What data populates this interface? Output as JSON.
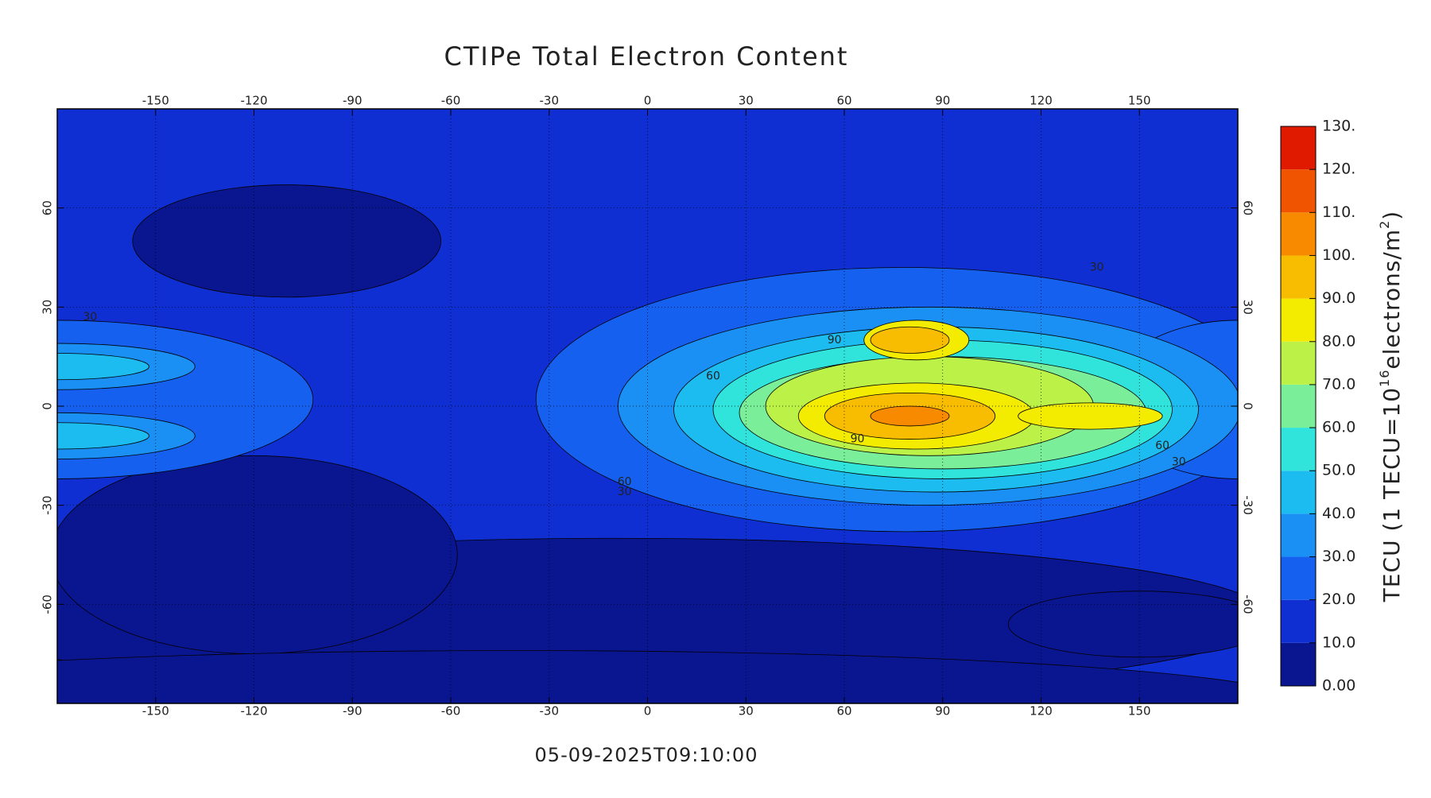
{
  "title": "CTIPe Total Electron Content",
  "timestamp": "05-09-2025T09:10:00",
  "map": {
    "xlim": [
      -180,
      180
    ],
    "ylim": [
      -90,
      90
    ],
    "xticks": [
      -150,
      -120,
      -90,
      -60,
      -30,
      0,
      30,
      60,
      90,
      120,
      150
    ],
    "yticks": [
      -60,
      -30,
      0,
      30,
      60
    ],
    "grid": true
  },
  "colorbar": {
    "label_parts": [
      "TECU (1 TECU=10",
      "16",
      "electrons/m",
      "2",
      ")"
    ],
    "range": [
      0,
      130
    ],
    "ticks": [
      {
        "value": 0,
        "label": "0.00"
      },
      {
        "value": 10,
        "label": "10.0"
      },
      {
        "value": 20,
        "label": "20.0"
      },
      {
        "value": 30,
        "label": "30.0"
      },
      {
        "value": 40,
        "label": "40.0"
      },
      {
        "value": 50,
        "label": "50.0"
      },
      {
        "value": 60,
        "label": "60.0"
      },
      {
        "value": 70,
        "label": "70.0"
      },
      {
        "value": 80,
        "label": "80.0"
      },
      {
        "value": 90,
        "label": "90.0"
      },
      {
        "value": 100,
        "label": "100."
      },
      {
        "value": 110,
        "label": "110."
      },
      {
        "value": 120,
        "label": "120."
      },
      {
        "value": 130,
        "label": "130."
      }
    ],
    "colors": [
      "#0a1590",
      "#0f2fd2",
      "#1660f0",
      "#1a90f4",
      "#1cbcf0",
      "#30e4dc",
      "#7aee98",
      "#bcf248",
      "#f4ec00",
      "#f8bc00",
      "#f88a00",
      "#f05400",
      "#e01a00"
    ]
  },
  "contour_labels": [
    30,
    60,
    90,
    90,
    60,
    30,
    60,
    30,
    30
  ]
}
